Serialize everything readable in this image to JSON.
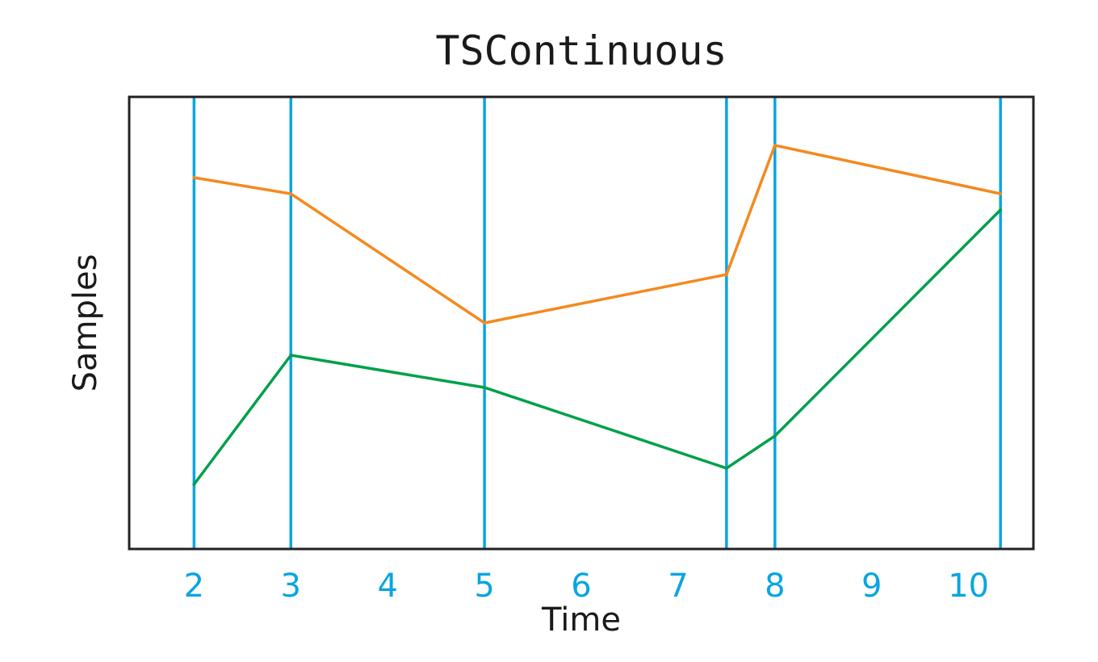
{
  "chart_data": {
    "type": "line",
    "title": "TSContinuous",
    "xlabel": "Time",
    "ylabel": "Samples",
    "xlim": [
      1.33,
      10.67
    ],
    "ylim": [
      0,
      14
    ],
    "x_ticks": [
      2,
      3,
      4,
      5,
      6,
      7,
      8,
      9,
      10
    ],
    "sample_times": [
      2,
      3,
      5,
      7.5,
      8,
      10.33
    ],
    "series": [
      {
        "values": [
          11.5,
          11,
          7,
          8.5,
          12.5,
          11
        ]
      },
      {
        "values": [
          2,
          6,
          5,
          2.5,
          3.5,
          10.5
        ]
      }
    ],
    "grid": false,
    "colors": {
      "sample_lines": "#0aa5e0",
      "ticks": "#0aa5e0",
      "series": [
        "#f4891f",
        "#00a04a"
      ],
      "frame": "#222222",
      "text": "#1a1a1a"
    }
  }
}
